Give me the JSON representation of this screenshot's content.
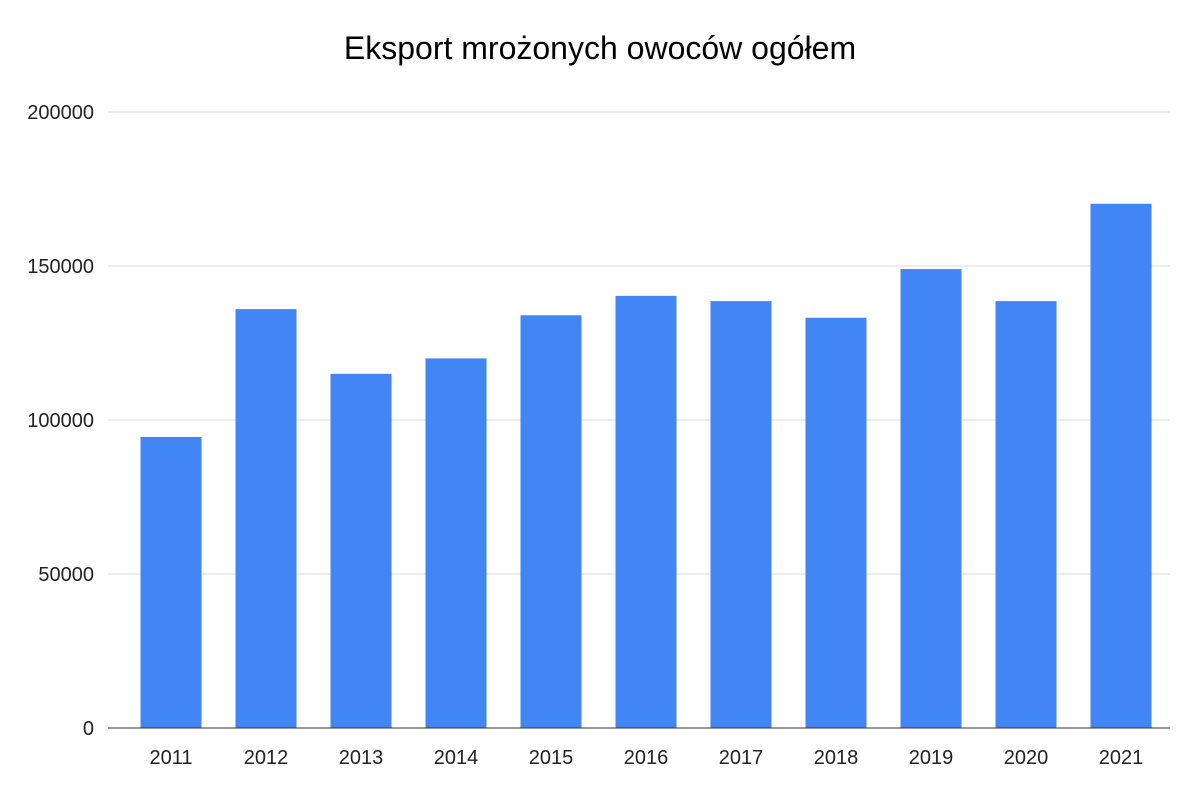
{
  "chart_data": {
    "type": "bar",
    "title": "Eksport mrożonych owoców ogółem",
    "xlabel": "",
    "ylabel": "",
    "categories": [
      "2011",
      "2012",
      "2013",
      "2014",
      "2015",
      "2016",
      "2017",
      "2018",
      "2019",
      "2020",
      "2021"
    ],
    "values": [
      94500,
      136000,
      115000,
      120000,
      134000,
      140300,
      138600,
      133200,
      149000,
      138600,
      170200
    ],
    "ylim": [
      0,
      200000
    ],
    "yticks": [
      0,
      50000,
      100000,
      150000,
      200000
    ],
    "grid": true,
    "legend": "none",
    "bar_color": "#4285f4"
  }
}
